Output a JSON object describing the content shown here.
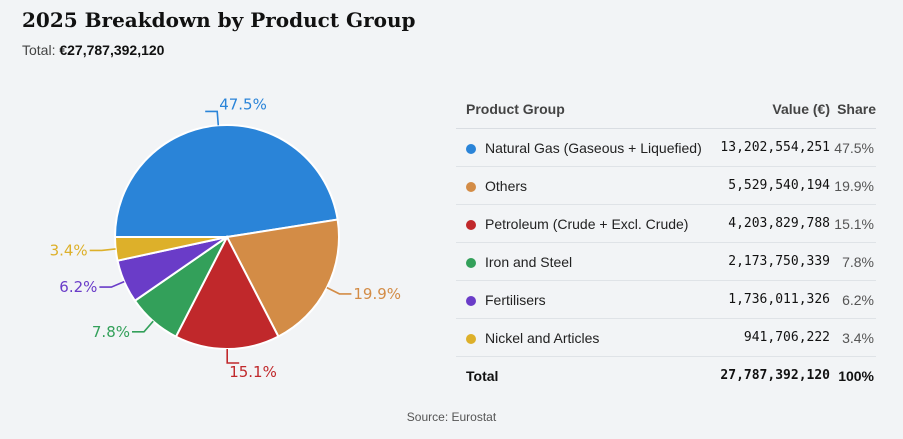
{
  "title": "2025 Breakdown by Product Group",
  "total_label": "Total:",
  "total_value": "€27,787,392,120",
  "table": {
    "headers": {
      "group": "Product Group",
      "value": "Value (€)",
      "share": "Share"
    },
    "rows": [
      {
        "name": "Natural Gas (Gaseous + Liquefied)",
        "value": "13,202,554,251",
        "share": "47.5%",
        "color": "#2a84d8"
      },
      {
        "name": "Others",
        "value": "5,529,540,194",
        "share": "19.9%",
        "color": "#d38c46"
      },
      {
        "name": "Petroleum (Crude + Excl. Crude)",
        "value": "4,203,829,788",
        "share": "15.1%",
        "color": "#c0282b"
      },
      {
        "name": "Iron and Steel",
        "value": "2,173,750,339",
        "share": "7.8%",
        "color": "#33a05a"
      },
      {
        "name": "Fertilisers",
        "value": "1,736,011,326",
        "share": "6.2%",
        "color": "#6a3cc8"
      },
      {
        "name": "Nickel and Articles",
        "value": "941,706,222",
        "share": "3.4%",
        "color": "#ddb02a"
      }
    ],
    "total": {
      "label": "Total",
      "value": "27,787,392,120",
      "share": "100%"
    }
  },
  "source": "Source: Eurostat",
  "chart_data": {
    "type": "pie",
    "title": "2025 Breakdown by Product Group",
    "categories": [
      "Natural Gas (Gaseous + Liquefied)",
      "Others",
      "Petroleum (Crude + Excl. Crude)",
      "Iron and Steel",
      "Fertilisers",
      "Nickel and Articles"
    ],
    "values": [
      13202554251,
      5529540194,
      4203829788,
      2173750339,
      1736011326,
      941706222
    ],
    "labels": [
      "47.5%",
      "19.9%",
      "15.1%",
      "7.8%",
      "6.2%",
      "3.4%"
    ],
    "colors": [
      "#2a84d8",
      "#d38c46",
      "#c0282b",
      "#33a05a",
      "#6a3cc8",
      "#ddb02a"
    ]
  }
}
